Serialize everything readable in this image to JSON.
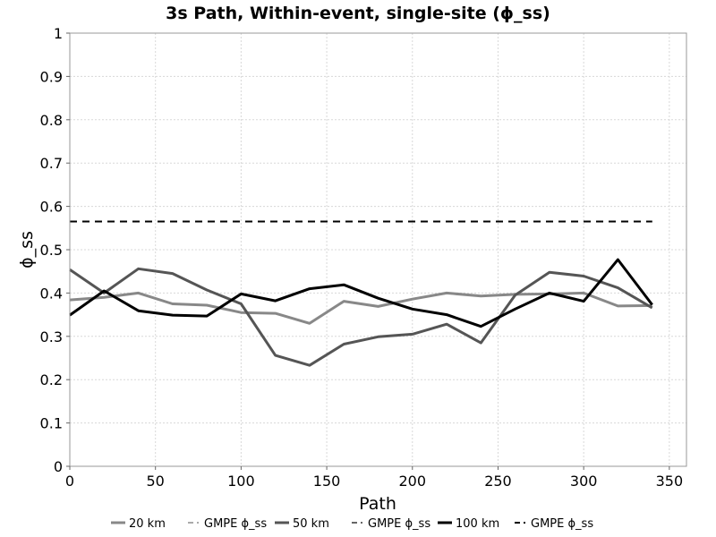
{
  "chart_data": {
    "type": "line",
    "title": "3s Path, Within-event, single-site (ϕ_ss)",
    "xlabel": "Path",
    "ylabel": "ϕ_ss",
    "xlim": [
      0,
      360
    ],
    "ylim": [
      0,
      1
    ],
    "xticks": [
      0,
      50,
      100,
      150,
      200,
      250,
      300,
      350
    ],
    "yticks": [
      0,
      0.1,
      0.2,
      0.3,
      0.4,
      0.5,
      0.6,
      0.7,
      0.8,
      0.9,
      1
    ],
    "x_tick_labels": [
      "0",
      "50",
      "100",
      "150",
      "200",
      "250",
      "300",
      "350"
    ],
    "y_tick_labels": [
      "0",
      "0.1",
      "0.2",
      "0.3",
      "0.4",
      "0.5",
      "0.6",
      "0.7",
      "0.8",
      "0.9",
      "1"
    ],
    "grid": true,
    "legend_position": "bottom",
    "series": [
      {
        "name": "20 km",
        "color": "#888888",
        "style": "solid",
        "x": [
          0,
          20,
          40,
          60,
          80,
          100,
          120,
          140,
          160,
          180,
          200,
          220,
          240,
          260,
          280,
          300,
          320,
          340
        ],
        "y": [
          0.384,
          0.39,
          0.4,
          0.375,
          0.372,
          0.355,
          0.353,
          0.33,
          0.381,
          0.369,
          0.386,
          0.4,
          0.393,
          0.397,
          0.398,
          0.4,
          0.37,
          0.371
        ]
      },
      {
        "name": "GMPE ϕ_ss",
        "color": "#aaaaaa",
        "style": "dashed",
        "x": [
          0,
          340
        ],
        "y": [
          0.565,
          0.565
        ]
      },
      {
        "name": "50 km",
        "color": "#555555",
        "style": "solid",
        "x": [
          0,
          20,
          40,
          60,
          80,
          100,
          120,
          140,
          160,
          180,
          200,
          220,
          240,
          260,
          280,
          300,
          320,
          340
        ],
        "y": [
          0.454,
          0.4,
          0.456,
          0.445,
          0.407,
          0.375,
          0.256,
          0.233,
          0.282,
          0.299,
          0.305,
          0.328,
          0.285,
          0.395,
          0.448,
          0.439,
          0.412,
          0.366
        ]
      },
      {
        "name": "GMPE ϕ_ss",
        "color": "#666666",
        "style": "dashed",
        "x": [
          0,
          340
        ],
        "y": [
          0.565,
          0.565
        ]
      },
      {
        "name": "100 km",
        "color": "#000000",
        "style": "solid",
        "x": [
          0,
          20,
          40,
          60,
          80,
          100,
          120,
          140,
          160,
          180,
          200,
          220,
          240,
          260,
          280,
          300,
          320,
          340
        ],
        "y": [
          0.349,
          0.405,
          0.359,
          0.349,
          0.347,
          0.398,
          0.382,
          0.41,
          0.419,
          0.388,
          0.363,
          0.35,
          0.323,
          0.363,
          0.4,
          0.381,
          0.477,
          0.373
        ]
      },
      {
        "name": "GMPE ϕ_ss",
        "color": "#000000",
        "style": "dashed",
        "x": [
          0,
          340
        ],
        "y": [
          0.565,
          0.565
        ]
      }
    ]
  }
}
